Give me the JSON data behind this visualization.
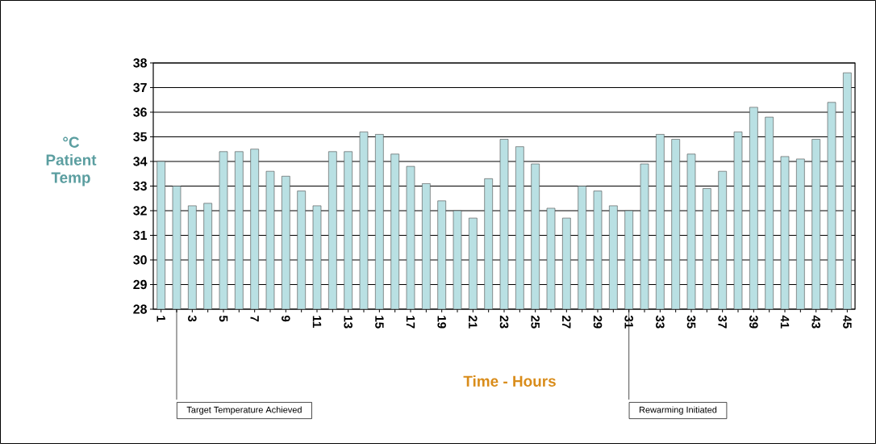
{
  "chart_data": {
    "type": "bar",
    "xlabel": "Time - Hours",
    "ylabel": "°C Patient Temp",
    "categories": [
      "1",
      null,
      "3",
      null,
      "5",
      null,
      "7",
      null,
      "9",
      null,
      "11",
      null,
      "13",
      null,
      "15",
      null,
      "17",
      null,
      "19",
      null,
      "21",
      null,
      "23",
      null,
      "25",
      null,
      "27",
      null,
      "29",
      null,
      "31",
      null,
      "33",
      null,
      "35",
      null,
      "37",
      null,
      "39",
      null,
      "41",
      null,
      "43",
      null,
      "45"
    ],
    "values": [
      34.0,
      33.0,
      32.2,
      32.3,
      34.4,
      34.4,
      34.5,
      33.6,
      33.4,
      32.8,
      32.2,
      34.4,
      34.4,
      35.2,
      35.1,
      34.3,
      33.8,
      33.1,
      32.4,
      32.0,
      31.7,
      33.3,
      34.9,
      34.6,
      33.9,
      32.1,
      31.7,
      33.0,
      32.8,
      32.2,
      32.0,
      33.9,
      35.1,
      34.9,
      34.3,
      32.9,
      33.6,
      35.2,
      36.2,
      35.8,
      34.2,
      34.1,
      34.9,
      36.4,
      37.6
    ],
    "color": "#b9e0e3",
    "ylim": [
      28,
      38
    ],
    "yticks": [
      28,
      29,
      30,
      31,
      32,
      33,
      34,
      35,
      36,
      37,
      38
    ],
    "grid": "y",
    "annotations": [
      "Target Temperature Achieved",
      "Rewarming Initiated"
    ]
  }
}
